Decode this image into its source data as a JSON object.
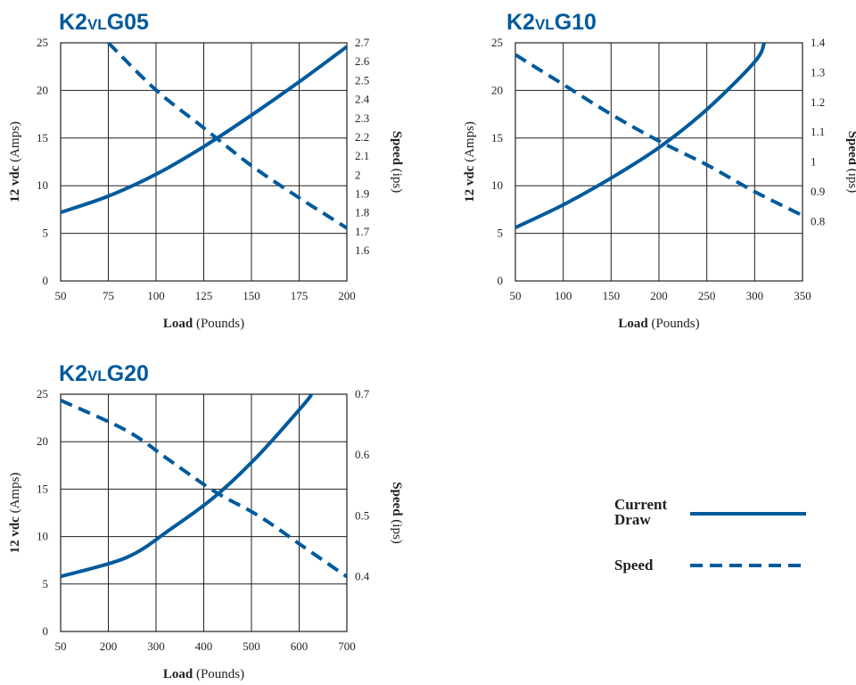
{
  "colors": {
    "series": "#005a9c",
    "title": "#005a9c",
    "grid": "#231f20",
    "text": "#231f20"
  },
  "chart_data": [
    {
      "type": "line",
      "title_prefix": "K2",
      "title_small": "VL",
      "title_suffix": "G05",
      "xlabel_bold": "Load",
      "xlabel_rest": " (Pounds)",
      "ylabel_bold": "12 vdc",
      "ylabel_rest": " (Amps)",
      "y2label_bold": "Speed",
      "y2label_rest": " (ips)",
      "xlim": [
        50,
        200
      ],
      "x_ticks": [
        50,
        75,
        100,
        125,
        150,
        175,
        200
      ],
      "ylim": [
        0,
        25
      ],
      "y_ticks": [
        0,
        5,
        10,
        15,
        20,
        25
      ],
      "y2lim": [
        1.44,
        2.7
      ],
      "y2_ticks": [
        "1.6",
        "1.7",
        "1.8",
        "1.9",
        "2",
        "2.1",
        "2.2",
        "2.3",
        "2.4",
        "2.5",
        "2.6",
        "2.7"
      ],
      "grid": true,
      "series": [
        {
          "axis": "left",
          "style": "solid",
          "x": [
            50,
            75,
            100,
            125,
            150,
            175,
            200
          ],
          "y": [
            7.2,
            8.9,
            11.2,
            14.1,
            17.4,
            20.9,
            24.6
          ]
        },
        {
          "axis": "right",
          "style": "dashed",
          "x": [
            75,
            100,
            125,
            150,
            175,
            200
          ],
          "y": [
            2.7,
            2.45,
            2.25,
            2.05,
            1.88,
            1.72
          ]
        }
      ]
    },
    {
      "type": "line",
      "title_prefix": "K2",
      "title_small": "VL",
      "title_suffix": "G10",
      "xlabel_bold": "Load",
      "xlabel_rest": " (Pounds)",
      "ylabel_bold": "12 vdc",
      "ylabel_rest": " (Amps)",
      "y2label_bold": "Speed",
      "y2label_rest": " (ips)",
      "xlim": [
        50,
        350
      ],
      "x_ticks": [
        50,
        100,
        150,
        200,
        250,
        300,
        350
      ],
      "ylim": [
        0,
        25
      ],
      "y_ticks": [
        0,
        5,
        10,
        15,
        20,
        25
      ],
      "y2lim": [
        0.6,
        1.4
      ],
      "y2_ticks": [
        "0.8",
        "0.9",
        "1",
        "1.1",
        "1.2",
        "1.3",
        "1.4"
      ],
      "grid": true,
      "series": [
        {
          "axis": "left",
          "style": "solid",
          "x": [
            50,
            100,
            150,
            200,
            250,
            300,
            310
          ],
          "y": [
            5.6,
            8.0,
            10.8,
            14.0,
            18.0,
            23.0,
            25.0
          ]
        },
        {
          "axis": "right",
          "style": "dashed",
          "x": [
            50,
            100,
            150,
            200,
            250,
            300,
            350
          ],
          "y": [
            1.36,
            1.26,
            1.16,
            1.07,
            0.99,
            0.9,
            0.82
          ]
        }
      ]
    },
    {
      "type": "line",
      "title_prefix": "K2",
      "title_small": "VL",
      "title_suffix": "G20",
      "xlabel_bold": "Load",
      "xlabel_rest": " (Pounds)",
      "ylabel_bold": "12 vdc",
      "ylabel_rest": " (Amps)",
      "y2label_bold": "Speed",
      "y2label_rest": " (ips)",
      "xlim": [
        50,
        700
      ],
      "x_ticks": [
        50,
        200,
        300,
        400,
        500,
        600,
        700
      ],
      "ylim": [
        0,
        25
      ],
      "y_ticks": [
        0,
        5,
        10,
        15,
        20,
        25
      ],
      "y2lim": [
        0.31,
        0.7
      ],
      "y2_ticks": [
        "0.4",
        "0.5",
        "0.6",
        "0.7"
      ],
      "grid": true,
      "series": [
        {
          "axis": "left",
          "style": "solid",
          "x": [
            50,
            200,
            300,
            400,
            500,
            600,
            620
          ],
          "y": [
            5.8,
            7.8,
            10.8,
            14.2,
            18.6,
            23.8,
            25.0
          ]
        },
        {
          "axis": "right",
          "style": "dashed",
          "x": [
            50,
            200,
            300,
            400,
            500,
            600,
            700
          ],
          "y": [
            0.69,
            0.64,
            0.59,
            0.54,
            0.5,
            0.45,
            0.4
          ]
        }
      ]
    }
  ],
  "legend": {
    "current_line1": "Current",
    "current_line2": "Draw",
    "speed": "Speed"
  }
}
